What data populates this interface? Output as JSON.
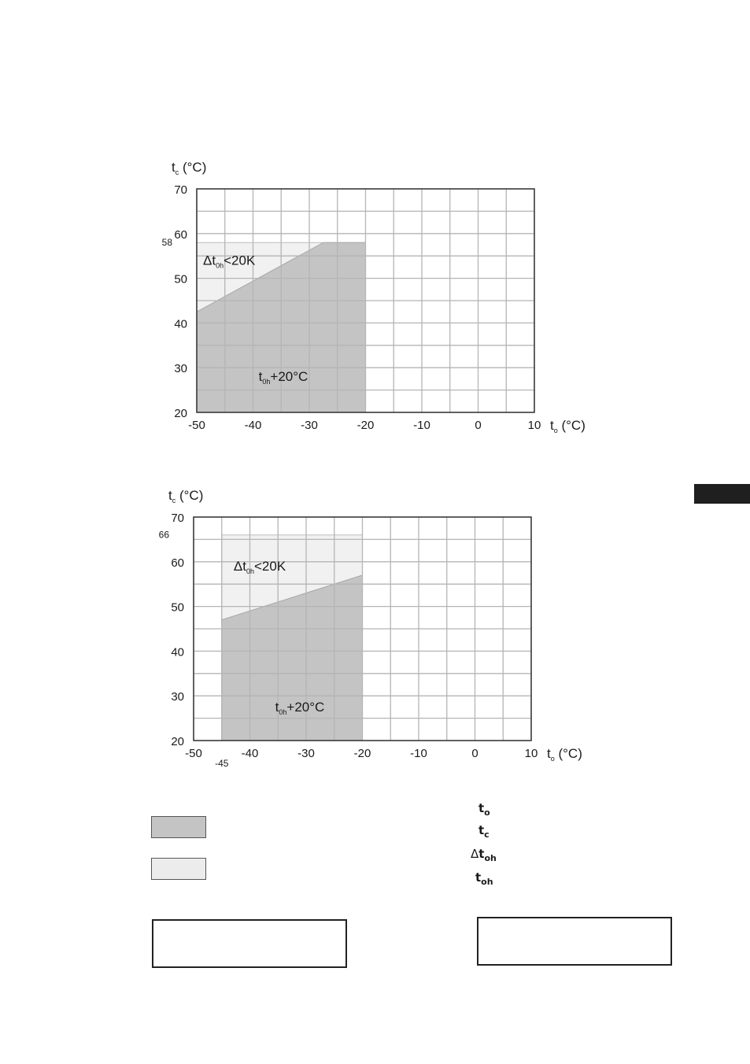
{
  "chart_data": [
    {
      "type": "area",
      "title": "",
      "xlabel": {
        "main": "t",
        "sub": "o",
        "unit": " (°C)"
      },
      "ylabel": {
        "main": "t",
        "sub": "c",
        "unit": " (°C)"
      },
      "xlim": [
        -50,
        10
      ],
      "ylim": [
        20,
        70
      ],
      "x_ticks": [
        "-50",
        "-40",
        "-30",
        "-20",
        "-10",
        "0",
        "10"
      ],
      "y_ticks": [
        "20",
        "30",
        "40",
        "50",
        "60",
        "70"
      ],
      "grid": true,
      "extra_y_label": "58",
      "extra_x_label": "",
      "regions": [
        {
          "name": "light",
          "color": "#f1f1f1",
          "points": [
            [
              -50,
              20
            ],
            [
              -50,
              58
            ],
            [
              -20,
              58
            ],
            [
              -20,
              20
            ]
          ]
        },
        {
          "name": "dark",
          "color": "#c4c4c4",
          "points": [
            [
              -50,
              20
            ],
            [
              -50,
              42.5
            ],
            [
              -27.5,
              58
            ],
            [
              -20,
              58
            ],
            [
              -20,
              20
            ]
          ]
        }
      ],
      "labels": {
        "upper": {
          "pre": "Δt",
          "sub": "0h",
          "post": "<20K",
          "x": -50,
          "y": 53
        },
        "lower": {
          "pre": "t",
          "sub": "0h",
          "post": "+20°C",
          "x": -39,
          "y": 27
        }
      }
    },
    {
      "type": "area",
      "title": "",
      "xlabel": {
        "main": "t",
        "sub": "o",
        "unit": " (°C)"
      },
      "ylabel": {
        "main": "t",
        "sub": "c",
        "unit": " (°C)"
      },
      "xlim": [
        -50,
        10
      ],
      "ylim": [
        20,
        70
      ],
      "x_ticks": [
        "-50",
        "-40",
        "-30",
        "-20",
        "-10",
        "0",
        "10"
      ],
      "y_ticks": [
        "20",
        "30",
        "40",
        "50",
        "60",
        "70"
      ],
      "grid": true,
      "extra_y_label": "66",
      "extra_x_label": "-45",
      "regions": [
        {
          "name": "light",
          "color": "#f1f1f1",
          "points": [
            [
              -45,
              20
            ],
            [
              -45,
              66
            ],
            [
              -20,
              66
            ],
            [
              -20,
              20
            ]
          ]
        },
        {
          "name": "dark",
          "color": "#c4c4c4",
          "points": [
            [
              -45,
              20
            ],
            [
              -45,
              47
            ],
            [
              -20,
              57
            ],
            [
              -20,
              20
            ]
          ]
        }
      ],
      "labels": {
        "upper": {
          "pre": "Δt",
          "sub": "0h",
          "post": "<20K",
          "x": -44,
          "y": 58
        },
        "lower": {
          "pre": "t",
          "sub": "0h",
          "post": "+20°C",
          "x": -35.5,
          "y": 26.5
        }
      }
    }
  ],
  "legend": {
    "swatch_dark_color": "#c4c4c4",
    "swatch_light_color": "#ececec"
  },
  "symbols": [
    {
      "pre": "",
      "main": "t",
      "sub": "o"
    },
    {
      "pre": "",
      "main": "t",
      "sub": "c"
    },
    {
      "pre": "Δ",
      "main": "t",
      "sub": "oh"
    },
    {
      "pre": "",
      "main": "t",
      "sub": "oh"
    }
  ]
}
